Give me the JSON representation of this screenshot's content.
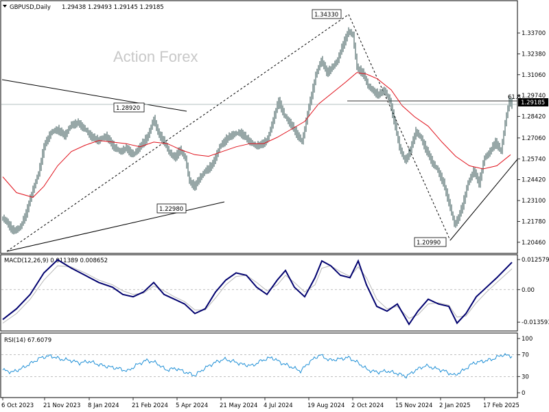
{
  "chart_data": {
    "type": "candlestick",
    "symbol_label": "GBPUSD,Daily",
    "ohlc_values": "1.29438 1.29493 1.29145 1.29185",
    "watermark": "Action Forex",
    "last_price": "1.29185",
    "fib_label": "61.8",
    "price_axis": {
      "range": [
        1.198,
        1.357
      ],
      "ticks": [
        "1.33700",
        "1.32380",
        "1.31060",
        "1.29740",
        "1.28420",
        "1.27060",
        "1.25740",
        "1.24420",
        "1.23100",
        "1.21780",
        "1.20460"
      ]
    },
    "date_axis": {
      "ticks": [
        "6 Oct 2023",
        "21 Nov 2023",
        "8 Jan 2024",
        "21 Feb 2024",
        "5 Apr 2024",
        "21 May 2024",
        "4 Jul 2024",
        "19 Aug 2024",
        "2 Oct 2024",
        "15 Nov 2024",
        "2 Jan 2025",
        "17 Feb 2025"
      ]
    },
    "annotations": [
      {
        "label": "1.34330",
        "price": 1.3433
      },
      {
        "label": "1.28920",
        "price": 1.2892
      },
      {
        "label": "1.22980",
        "price": 1.2298
      },
      {
        "label": "1.20990",
        "price": 1.2099
      }
    ],
    "price_path": [
      [
        0,
        1.22
      ],
      [
        8,
        1.216
      ],
      [
        16,
        1.2115
      ],
      [
        26,
        1.2145
      ],
      [
        34,
        1.223
      ],
      [
        44,
        1.238
      ],
      [
        52,
        1.248
      ],
      [
        60,
        1.265
      ],
      [
        70,
        1.274
      ],
      [
        80,
        1.276
      ],
      [
        90,
        1.272
      ],
      [
        100,
        1.279
      ],
      [
        110,
        1.28
      ],
      [
        120,
        1.276
      ],
      [
        130,
        1.271
      ],
      [
        140,
        1.269
      ],
      [
        150,
        1.272
      ],
      [
        160,
        1.266
      ],
      [
        170,
        1.262
      ],
      [
        180,
        1.264
      ],
      [
        190,
        1.26
      ],
      [
        200,
        1.265
      ],
      [
        212,
        1.272
      ],
      [
        220,
        1.283
      ],
      [
        226,
        1.274
      ],
      [
        234,
        1.269
      ],
      [
        242,
        1.262
      ],
      [
        250,
        1.258
      ],
      [
        258,
        1.263
      ],
      [
        266,
        1.258
      ],
      [
        272,
        1.243
      ],
      [
        280,
        1.24
      ],
      [
        288,
        1.246
      ],
      [
        296,
        1.25
      ],
      [
        306,
        1.254
      ],
      [
        316,
        1.265
      ],
      [
        326,
        1.27
      ],
      [
        336,
        1.273
      ],
      [
        346,
        1.274
      ],
      [
        356,
        1.27
      ],
      [
        366,
        1.266
      ],
      [
        376,
        1.266
      ],
      [
        386,
        1.27
      ],
      [
        396,
        1.285
      ],
      [
        402,
        1.294
      ],
      [
        410,
        1.285
      ],
      [
        420,
        1.279
      ],
      [
        430,
        1.272
      ],
      [
        436,
        1.268
      ],
      [
        446,
        1.29
      ],
      [
        456,
        1.31
      ],
      [
        464,
        1.32
      ],
      [
        472,
        1.312
      ],
      [
        480,
        1.315
      ],
      [
        488,
        1.32
      ],
      [
        496,
        1.33
      ],
      [
        504,
        1.338
      ],
      [
        510,
        1.336
      ],
      [
        516,
        1.315
      ],
      [
        524,
        1.312
      ],
      [
        532,
        1.304
      ],
      [
        540,
        1.3
      ],
      [
        548,
        1.298
      ],
      [
        556,
        1.301
      ],
      [
        564,
        1.294
      ],
      [
        570,
        1.282
      ],
      [
        578,
        1.265
      ],
      [
        586,
        1.256
      ],
      [
        594,
        1.263
      ],
      [
        602,
        1.275
      ],
      [
        610,
        1.27
      ],
      [
        618,
        1.262
      ],
      [
        626,
        1.255
      ],
      [
        634,
        1.25
      ],
      [
        642,
        1.242
      ],
      [
        650,
        1.23
      ],
      [
        658,
        1.216
      ],
      [
        664,
        1.22
      ],
      [
        670,
        1.228
      ],
      [
        678,
        1.242
      ],
      [
        686,
        1.25
      ],
      [
        694,
        1.242
      ],
      [
        702,
        1.258
      ],
      [
        710,
        1.262
      ],
      [
        718,
        1.268
      ],
      [
        726,
        1.262
      ],
      [
        732,
        1.28
      ],
      [
        738,
        1.294
      ],
      [
        742,
        1.292
      ]
    ],
    "ma_path": [
      [
        0,
        1.246
      ],
      [
        20,
        1.236
      ],
      [
        44,
        1.233
      ],
      [
        60,
        1.24
      ],
      [
        80,
        1.253
      ],
      [
        100,
        1.262
      ],
      [
        120,
        1.266
      ],
      [
        140,
        1.269
      ],
      [
        160,
        1.268
      ],
      [
        180,
        1.267
      ],
      [
        200,
        1.265
      ],
      [
        220,
        1.268
      ],
      [
        240,
        1.267
      ],
      [
        260,
        1.263
      ],
      [
        280,
        1.26
      ],
      [
        300,
        1.259
      ],
      [
        320,
        1.262
      ],
      [
        340,
        1.265
      ],
      [
        360,
        1.267
      ],
      [
        380,
        1.267
      ],
      [
        400,
        1.271
      ],
      [
        420,
        1.276
      ],
      [
        440,
        1.281
      ],
      [
        460,
        1.292
      ],
      [
        480,
        1.299
      ],
      [
        500,
        1.306
      ],
      [
        516,
        1.312
      ],
      [
        530,
        1.311
      ],
      [
        546,
        1.308
      ],
      [
        566,
        1.301
      ],
      [
        582,
        1.291
      ],
      [
        600,
        1.284
      ],
      [
        620,
        1.278
      ],
      [
        640,
        1.268
      ],
      [
        660,
        1.259
      ],
      [
        680,
        1.253
      ],
      [
        700,
        1.251
      ],
      [
        720,
        1.253
      ],
      [
        740,
        1.26
      ]
    ],
    "macd": {
      "label": "MACD(12,26,9) 0.011389 0.008652",
      "range": [
        -0.017,
        0.0143
      ],
      "ticks": [
        "0.012579",
        "0.00",
        "-0.013593"
      ],
      "macd_path": [
        [
          0,
          -0.0125
        ],
        [
          20,
          -0.008
        ],
        [
          40,
          -0.002
        ],
        [
          60,
          0.007
        ],
        [
          80,
          0.0125
        ],
        [
          100,
          0.009
        ],
        [
          120,
          0.006
        ],
        [
          140,
          0.003
        ],
        [
          160,
          0.001
        ],
        [
          175,
          -0.002
        ],
        [
          190,
          -0.003
        ],
        [
          205,
          -0.001
        ],
        [
          220,
          0.003
        ],
        [
          235,
          -0.002
        ],
        [
          250,
          -0.004
        ],
        [
          265,
          -0.006
        ],
        [
          280,
          -0.01
        ],
        [
          295,
          -0.008
        ],
        [
          310,
          -0.001
        ],
        [
          325,
          0.004
        ],
        [
          340,
          0.007
        ],
        [
          355,
          0.006
        ],
        [
          370,
          0.001
        ],
        [
          385,
          -0.002
        ],
        [
          400,
          0.004
        ],
        [
          412,
          0.008
        ],
        [
          425,
          0.001
        ],
        [
          440,
          -0.003
        ],
        [
          455,
          0.005
        ],
        [
          465,
          0.012
        ],
        [
          478,
          0.01
        ],
        [
          492,
          0.006
        ],
        [
          506,
          0.005
        ],
        [
          518,
          0.012
        ],
        [
          530,
          0.002
        ],
        [
          545,
          -0.007
        ],
        [
          560,
          -0.009
        ],
        [
          575,
          -0.006
        ],
        [
          592,
          -0.0145
        ],
        [
          605,
          -0.009
        ],
        [
          620,
          -0.004
        ],
        [
          635,
          -0.006
        ],
        [
          650,
          -0.007
        ],
        [
          662,
          -0.014
        ],
        [
          675,
          -0.01
        ],
        [
          690,
          -0.003
        ],
        [
          705,
          0.001
        ],
        [
          720,
          0.005
        ],
        [
          742,
          0.0114
        ]
      ],
      "signal_path": [
        [
          0,
          -0.014
        ],
        [
          20,
          -0.01
        ],
        [
          40,
          -0.004
        ],
        [
          60,
          0.004
        ],
        [
          80,
          0.01
        ],
        [
          100,
          0.0095
        ],
        [
          120,
          0.007
        ],
        [
          140,
          0.004
        ],
        [
          160,
          0.002
        ],
        [
          175,
          -0.0005
        ],
        [
          190,
          -0.002
        ],
        [
          205,
          -0.0015
        ],
        [
          220,
          0.0015
        ],
        [
          235,
          -0.0005
        ],
        [
          250,
          -0.003
        ],
        [
          265,
          -0.005
        ],
        [
          280,
          -0.0085
        ],
        [
          295,
          -0.0085
        ],
        [
          310,
          -0.0035
        ],
        [
          325,
          0.002
        ],
        [
          340,
          0.0055
        ],
        [
          355,
          0.006
        ],
        [
          370,
          0.003
        ],
        [
          385,
          -0.0005
        ],
        [
          400,
          0.002
        ],
        [
          412,
          0.006
        ],
        [
          425,
          0.003
        ],
        [
          440,
          -0.001
        ],
        [
          455,
          0.002
        ],
        [
          465,
          0.009
        ],
        [
          478,
          0.01
        ],
        [
          492,
          0.0075
        ],
        [
          506,
          0.0055
        ],
        [
          518,
          0.0095
        ],
        [
          530,
          0.005
        ],
        [
          545,
          -0.004
        ],
        [
          560,
          -0.008
        ],
        [
          575,
          -0.007
        ],
        [
          592,
          -0.012
        ],
        [
          605,
          -0.0105
        ],
        [
          620,
          -0.006
        ],
        [
          635,
          -0.0055
        ],
        [
          650,
          -0.0065
        ],
        [
          662,
          -0.0115
        ],
        [
          675,
          -0.011
        ],
        [
          690,
          -0.0055
        ],
        [
          705,
          -0.001
        ],
        [
          720,
          0.003
        ],
        [
          742,
          0.0087
        ]
      ]
    },
    "rsi": {
      "label": "RSI(14) 67.6079",
      "range": [
        0,
        100
      ],
      "ticks": [
        "100",
        "70",
        "30",
        "0"
      ],
      "levels": [
        70,
        30
      ],
      "path": [
        [
          0,
          42
        ],
        [
          14,
          38
        ],
        [
          28,
          45
        ],
        [
          42,
          55
        ],
        [
          56,
          65
        ],
        [
          70,
          68
        ],
        [
          84,
          62
        ],
        [
          98,
          60
        ],
        [
          112,
          55
        ],
        [
          126,
          58
        ],
        [
          140,
          52
        ],
        [
          154,
          48
        ],
        [
          168,
          45
        ],
        [
          182,
          40
        ],
        [
          196,
          52
        ],
        [
          210,
          60
        ],
        [
          224,
          55
        ],
        [
          238,
          42
        ],
        [
          252,
          45
        ],
        [
          266,
          38
        ],
        [
          280,
          32
        ],
        [
          294,
          45
        ],
        [
          308,
          55
        ],
        [
          322,
          62
        ],
        [
          336,
          58
        ],
        [
          350,
          52
        ],
        [
          364,
          50
        ],
        [
          378,
          60
        ],
        [
          392,
          65
        ],
        [
          406,
          55
        ],
        [
          420,
          48
        ],
        [
          434,
          40
        ],
        [
          448,
          58
        ],
        [
          462,
          70
        ],
        [
          476,
          60
        ],
        [
          490,
          62
        ],
        [
          504,
          65
        ],
        [
          518,
          55
        ],
        [
          532,
          42
        ],
        [
          546,
          38
        ],
        [
          560,
          40
        ],
        [
          574,
          36
        ],
        [
          588,
          30
        ],
        [
          602,
          42
        ],
        [
          616,
          50
        ],
        [
          630,
          45
        ],
        [
          644,
          40
        ],
        [
          658,
          32
        ],
        [
          672,
          42
        ],
        [
          686,
          55
        ],
        [
          700,
          58
        ],
        [
          714,
          62
        ],
        [
          728,
          70
        ],
        [
          742,
          67.6
        ]
      ]
    }
  }
}
